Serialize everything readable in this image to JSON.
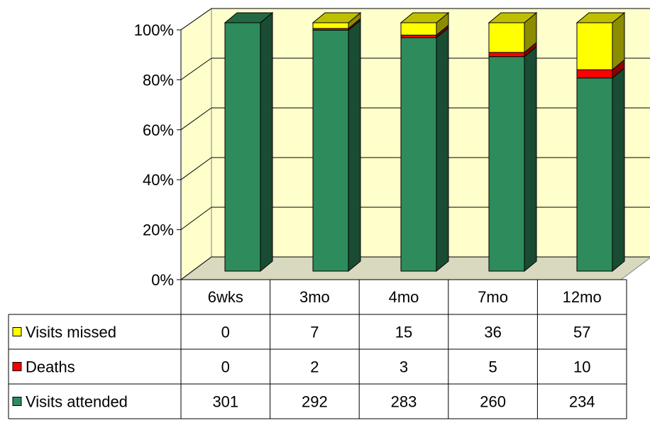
{
  "chart_data": {
    "type": "bar",
    "stacked": "percent",
    "three_d": true,
    "categories": [
      "6wks",
      "3mo",
      "4mo",
      "7mo",
      "12mo"
    ],
    "series": [
      {
        "name": "Visits attended",
        "values": [
          301,
          292,
          283,
          260,
          234
        ],
        "color": "#2E8B5B"
      },
      {
        "name": "Deaths",
        "values": [
          0,
          2,
          3,
          5,
          10
        ],
        "color": "#FF0000"
      },
      {
        "name": "Visits missed",
        "values": [
          0,
          7,
          15,
          36,
          57
        ],
        "color": "#FFFF00"
      }
    ],
    "y_ticks": [
      "0%",
      "20%",
      "40%",
      "60%",
      "80%",
      "100%"
    ],
    "ylim": [
      0,
      100
    ],
    "grid": true,
    "wall_color": "#FFFFCC",
    "data_table": true,
    "legend_placement": "data-table"
  }
}
